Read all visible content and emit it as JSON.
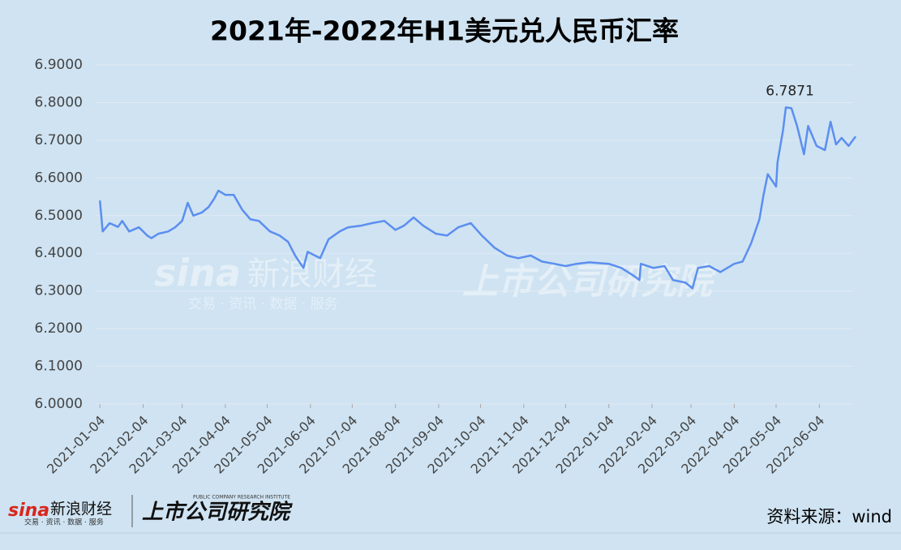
{
  "chart_data": {
    "type": "line",
    "title": "2021年-2022年H1美元兑人民币汇率",
    "x": [
      "2021-01-04",
      "2021-01-06",
      "2021-01-11",
      "2021-01-17",
      "2021-01-20",
      "2021-01-25",
      "2021-02-01",
      "2021-02-07",
      "2021-02-10",
      "2021-02-15",
      "2021-02-22",
      "2021-02-27",
      "2021-03-04",
      "2021-03-08",
      "2021-03-12",
      "2021-03-18",
      "2021-03-23",
      "2021-03-27",
      "2021-03-30",
      "2021-04-04",
      "2021-04-10",
      "2021-04-16",
      "2021-04-22",
      "2021-04-28",
      "2021-05-06",
      "2021-05-13",
      "2021-05-19",
      "2021-05-24",
      "2021-05-30",
      "2021-06-02",
      "2021-06-11",
      "2021-06-17",
      "2021-06-25",
      "2021-07-01",
      "2021-07-10",
      "2021-07-18",
      "2021-07-27",
      "2021-08-04",
      "2021-08-10",
      "2021-08-17",
      "2021-08-24",
      "2021-09-02",
      "2021-09-10",
      "2021-09-18",
      "2021-09-27",
      "2021-10-05",
      "2021-10-14",
      "2021-10-23",
      "2021-10-31",
      "2021-11-09",
      "2021-11-17",
      "2021-11-26",
      "2021-12-04",
      "2021-12-12",
      "2021-12-21",
      "2022-01-04",
      "2022-01-13",
      "2022-01-22",
      "2022-01-26",
      "2022-01-27",
      "2022-02-05",
      "2022-02-13",
      "2022-02-19",
      "2022-02-28",
      "2022-03-05",
      "2022-03-09",
      "2022-03-17",
      "2022-03-25",
      "2022-04-04",
      "2022-04-10",
      "2022-04-16",
      "2022-04-22",
      "2022-04-25",
      "2022-04-28",
      "2022-05-04",
      "2022-05-05",
      "2022-05-09",
      "2022-05-11",
      "2022-05-15",
      "2022-05-19",
      "2022-05-24",
      "2022-05-27",
      "2022-06-02",
      "2022-06-08",
      "2022-06-12",
      "2022-06-16",
      "2022-06-20",
      "2022-06-25",
      "2022-06-30"
    ],
    "series": [
      {
        "name": "美元兑人民币",
        "color": "#5b8ef0",
        "values": [
          6.54,
          6.458,
          6.48,
          6.47,
          6.486,
          6.458,
          6.469,
          6.447,
          6.44,
          6.452,
          6.458,
          6.469,
          6.486,
          6.534,
          6.5,
          6.508,
          6.523,
          6.545,
          6.566,
          6.555,
          6.555,
          6.516,
          6.49,
          6.486,
          6.458,
          6.447,
          6.43,
          6.394,
          6.361,
          6.404,
          6.387,
          6.437,
          6.458,
          6.469,
          6.473,
          6.48,
          6.486,
          6.462,
          6.473,
          6.495,
          6.473,
          6.452,
          6.447,
          6.469,
          6.48,
          6.447,
          6.415,
          6.394,
          6.387,
          6.394,
          6.378,
          6.372,
          6.366,
          6.372,
          6.376,
          6.372,
          6.361,
          6.34,
          6.329,
          6.372,
          6.361,
          6.366,
          6.329,
          6.322,
          6.307,
          6.361,
          6.366,
          6.35,
          6.372,
          6.378,
          6.426,
          6.49,
          6.555,
          6.61,
          6.577,
          6.641,
          6.728,
          6.7871,
          6.785,
          6.738,
          6.663,
          6.738,
          6.685,
          6.674,
          6.749,
          6.689,
          6.706,
          6.685,
          6.71
        ]
      }
    ],
    "annotations": [
      {
        "text": "6.7871",
        "x": "2022-05-11",
        "y": 6.7871
      }
    ],
    "xlim": [
      "2021-01-01",
      "2022-06-30"
    ],
    "xticks": [
      "2021-01-04",
      "2021-02-04",
      "2021-03-04",
      "2021-04-04",
      "2021-05-04",
      "2021-06-04",
      "2021-07-04",
      "2021-08-04",
      "2021-09-04",
      "2021-10-04",
      "2021-11-04",
      "2021-12-04",
      "2022-01-04",
      "2022-02-04",
      "2022-03-04",
      "2022-04-04",
      "2022-05-04",
      "2022-06-04"
    ],
    "ylim": [
      6.0,
      6.9
    ],
    "yticks": [
      {
        "value": 6.0,
        "label": "6.0000"
      },
      {
        "value": 6.1,
        "label": "6.1000"
      },
      {
        "value": 6.2,
        "label": "6.2000"
      },
      {
        "value": 6.3,
        "label": "6.3000"
      },
      {
        "value": 6.4,
        "label": "6.4000"
      },
      {
        "value": 6.5,
        "label": "6.5000"
      },
      {
        "value": 6.6,
        "label": "6.6000"
      },
      {
        "value": 6.7,
        "label": "6.7000"
      },
      {
        "value": 6.8,
        "label": "6.8000"
      },
      {
        "value": 6.9,
        "label": "6.9000"
      }
    ],
    "grid": true
  },
  "footer": {
    "brand": "sina",
    "brand_name": "新浪财经",
    "brand_tagline": "交易 · 资讯 · 数据 · 服务",
    "institute": "上市公司研究院",
    "institute_en": "PUBLIC COMPANY RESEARCH INSTITUTE",
    "source": "资料来源：wind"
  }
}
